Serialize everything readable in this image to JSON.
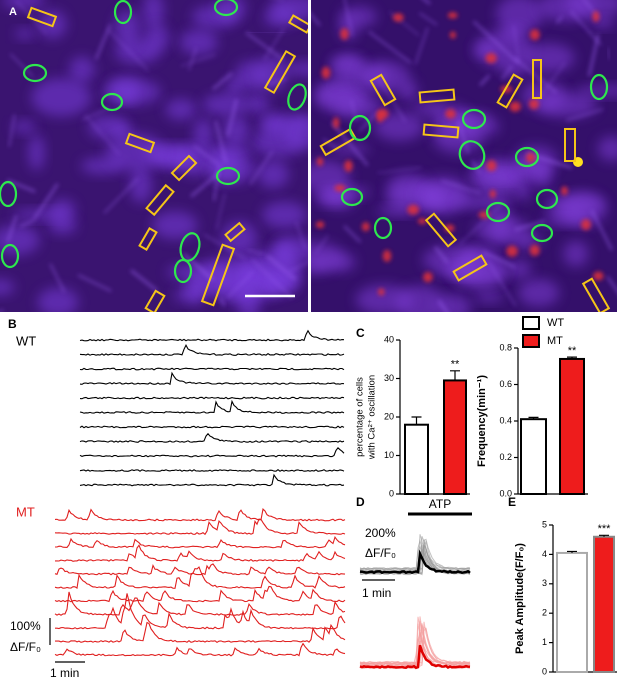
{
  "panels": {
    "a": "A",
    "b": "B",
    "c": "C",
    "d": "D",
    "e": "E"
  },
  "panel_b": {
    "wt": "WT",
    "mt": "MT",
    "scale_y": "100%",
    "scale_unit": "ΔF/F₀",
    "scale_x": "1 min"
  },
  "panel_d": {
    "stimulus": "ATP",
    "scale_y": "200%",
    "scale_unit": "ΔF/F₀",
    "scale_x": "1 min"
  },
  "chart_data": [
    {
      "type": "bar",
      "ylabel": [
        "percentage of cells",
        "with Ca²⁺ oscillation"
      ],
      "categories": [
        null,
        null
      ],
      "values": [
        18,
        29.5
      ],
      "errors": [
        2,
        2.5
      ],
      "colors": [
        "#ffffff",
        "#ee1c1c"
      ],
      "edgecolors": [
        "#000000",
        "#000000"
      ],
      "annotation": "**",
      "ylim": [
        0,
        40
      ],
      "yticks": [
        0,
        10,
        20,
        30,
        40
      ]
    },
    {
      "type": "bar",
      "ylabel": "Frequency(min⁻¹)",
      "categories": [
        null
      ],
      "series": [
        {
          "name": "WT",
          "color": "#ffffff",
          "edgecolor": "#000000",
          "values": [
            0.41
          ],
          "errors": [
            0.01
          ]
        },
        {
          "name": "MT",
          "color": "#ee1c1c",
          "edgecolor": "#000000",
          "values": [
            0.74
          ],
          "errors": [
            0.01
          ]
        }
      ],
      "annotation": "**",
      "ylim": [
        0,
        0.8
      ],
      "yticks": [
        {
          "value": 0,
          "label": "0.0"
        },
        0.2,
        0.4,
        0.6,
        0.8
      ]
    },
    {
      "type": "bar",
      "ylabel": "Peak Amplitude(F/F₀)",
      "categories": [
        null,
        null
      ],
      "values": [
        4.05,
        4.6
      ],
      "errors": [
        0.05,
        0.05
      ],
      "colors": [
        "#ffffff",
        "#ee1c1c"
      ],
      "edgecolors": [
        "#aaaaaa",
        "#888888"
      ],
      "annotation": "***",
      "ylim": [
        0,
        5
      ],
      "yticks": [
        0,
        1,
        2,
        3,
        4,
        5
      ]
    }
  ]
}
